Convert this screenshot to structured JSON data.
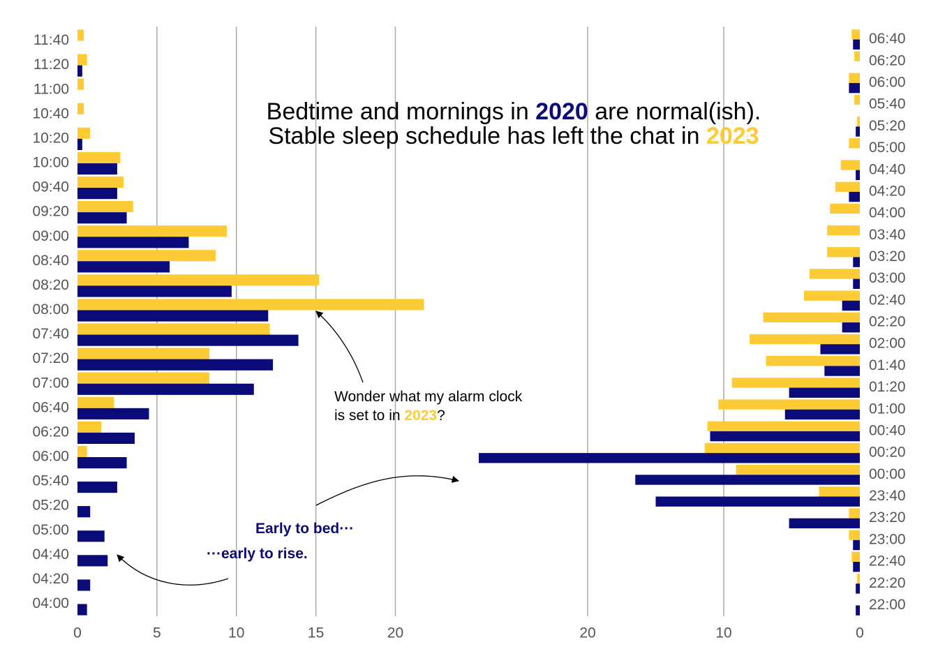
{
  "title": [
    [
      {
        "text": "Bedtime and mornings in "
      },
      {
        "text": "2020",
        "color": "#0a0a78"
      },
      {
        "text": " are normal(ish)."
      }
    ],
    [
      {
        "text": "Stable sleep schedule has left the chat in "
      },
      {
        "text": "2023",
        "color": "#fdcb36"
      }
    ]
  ],
  "annotations": [
    {
      "color": "#000000",
      "lines": [
        [
          {
            "text": "Wonder what my alarm clock"
          }
        ],
        [
          {
            "text": "is set to in "
          },
          {
            "text": "2023",
            "color": "#fdcb36"
          },
          {
            "text": "?"
          }
        ]
      ]
    },
    {
      "color": "#0a0a78",
      "bold": true,
      "lines": [
        [
          {
            "text": "Early to bed···"
          }
        ]
      ]
    },
    {
      "color": "#0a0a78",
      "bold": true,
      "lines": [
        [
          {
            "text": "···early to rise."
          }
        ]
      ]
    }
  ],
  "chart_data": [
    {
      "type": "barh",
      "categories": [
        "04:00",
        "04:20",
        "04:40",
        "05:00",
        "05:20",
        "05:40",
        "06:00",
        "06:20",
        "06:40",
        "07:00",
        "07:20",
        "07:40",
        "08:00",
        "08:20",
        "08:40",
        "09:00",
        "09:20",
        "09:40",
        "10:00",
        "10:20",
        "10:40",
        "11:00",
        "11:20",
        "11:40"
      ],
      "series": [
        {
          "color": "#fdcb36",
          "values": [
            0,
            0,
            0,
            0,
            0,
            0,
            0.6,
            1.5,
            2.3,
            8.3,
            8.3,
            12.1,
            21.8,
            15.2,
            8.7,
            9.4,
            3.5,
            2.9,
            2.7,
            0.8,
            0.4,
            0.4,
            0.6,
            0.4
          ]
        },
        {
          "color": "#0a0a78",
          "values": [
            0.6,
            0.8,
            1.9,
            1.7,
            0.8,
            2.5,
            3.1,
            3.6,
            4.5,
            11.1,
            12.3,
            13.9,
            12.0,
            9.7,
            5.8,
            7.0,
            3.1,
            2.5,
            2.5,
            0.3,
            0,
            0,
            0.3,
            0
          ]
        }
      ],
      "xlim": [
        0,
        22
      ],
      "xticks": [
        0,
        5,
        10,
        15,
        20
      ],
      "grid": true
    },
    {
      "type": "barh",
      "categories": [
        "22:00",
        "22:20",
        "22:40",
        "23:00",
        "23:20",
        "23:40",
        "00:00",
        "00:20",
        "00:40",
        "01:00",
        "01:20",
        "01:40",
        "02:00",
        "02:20",
        "02:40",
        "03:00",
        "03:20",
        "03:40",
        "04:00",
        "04:20",
        "04:40",
        "05:00",
        "05:20",
        "05:40",
        "06:00",
        "06:20",
        "06:40"
      ],
      "series": [
        {
          "color": "#fdcb36",
          "values": [
            0,
            0.2,
            0.6,
            0.8,
            0.8,
            3.0,
            9.1,
            11.4,
            11.2,
            10.4,
            9.4,
            6.9,
            8.1,
            7.1,
            4.1,
            3.7,
            2.4,
            2.4,
            2.2,
            1.8,
            1.4,
            0.8,
            0.2,
            0.4,
            0.8,
            0.4,
            0.6
          ]
        },
        {
          "color": "#0a0a78",
          "values": [
            0.3,
            0.3,
            0.5,
            0.5,
            5.2,
            15.0,
            16.5,
            28.0,
            11.0,
            5.5,
            5.2,
            2.6,
            2.9,
            1.3,
            1.3,
            0.5,
            0.5,
            0,
            0,
            0.8,
            0.3,
            0,
            0.3,
            0,
            0.8,
            0,
            0.5
          ]
        }
      ],
      "xlim": [
        28,
        0
      ],
      "xticks": [
        20,
        10,
        0
      ],
      "grid": true
    }
  ]
}
